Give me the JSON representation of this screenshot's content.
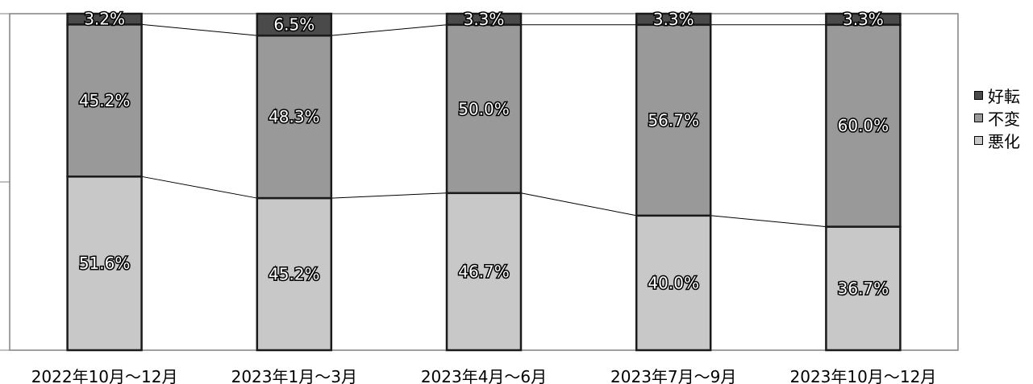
{
  "chart_data": {
    "type": "bar",
    "stacked": true,
    "percent": true,
    "categories": [
      "2022年10月～12月",
      "2023年1月～3月",
      "2023年4月～6月",
      "2023年7月～9月",
      "2023年10月～12月"
    ],
    "series": [
      {
        "name": "悪化",
        "values": [
          51.6,
          45.2,
          46.7,
          40.0,
          36.7
        ],
        "labels": [
          "51.6%",
          "45.2%",
          "46.7%",
          "40.0%",
          "36.7%"
        ],
        "color": "#c8c8c8"
      },
      {
        "name": "不変",
        "values": [
          45.2,
          48.3,
          50.0,
          56.7,
          60.0
        ],
        "labels": [
          "45.2%",
          "48.3%",
          "50.0%",
          "56.7%",
          "60.0%"
        ],
        "color": "#999999"
      },
      {
        "name": "好転",
        "values": [
          3.2,
          6.5,
          3.3,
          3.3,
          3.3
        ],
        "labels": [
          "3.2%",
          "6.5%",
          "3.3%",
          "3.3%",
          "3.3%"
        ],
        "color": "#4a4a4a"
      }
    ],
    "ylim": [
      0,
      100
    ],
    "legend_position": "right",
    "grid": false,
    "connector_lines": true
  },
  "legend": {
    "items": [
      {
        "label": "好転",
        "color": "#4a4a4a"
      },
      {
        "label": "不変",
        "color": "#999999"
      },
      {
        "label": "悪化",
        "color": "#c8c8c8"
      }
    ]
  }
}
